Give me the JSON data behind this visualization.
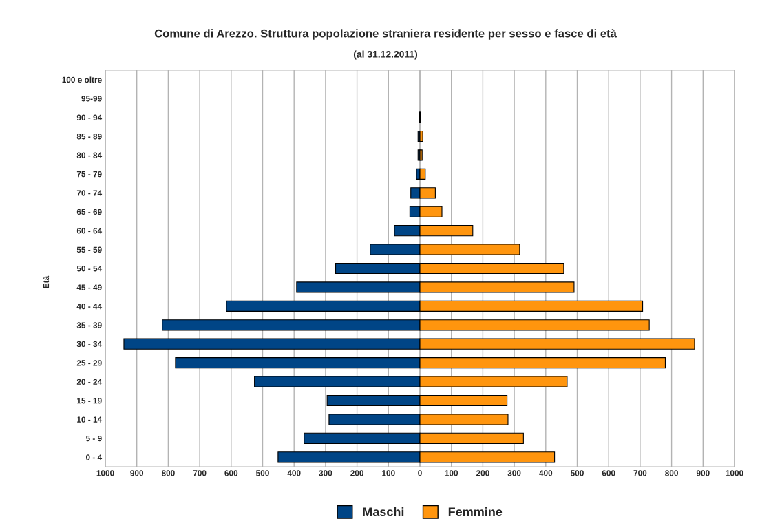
{
  "chart_data": {
    "type": "bar",
    "orientation": "horizontal",
    "stacked": true,
    "title": "Comune di Arezzo. Struttura popolazione straniera residente per sesso e fasce di età",
    "subtitle": "(al 31.12.2011)",
    "ylabel": "Età",
    "categories": [
      "100 e oltre",
      "95-99",
      "90 - 94",
      "85 - 89",
      "80 - 84",
      "75 - 79",
      "70 - 74",
      "65 - 69",
      "60 - 64",
      "55 - 59",
      "50 - 54",
      "45 - 49",
      "40 - 44",
      "35 - 39",
      "30 - 34",
      "25 - 29",
      "20 - 24",
      "15 - 19",
      "10 - 14",
      "5 - 9",
      "0 - 4"
    ],
    "series": [
      {
        "name": "Maschi",
        "color": "#004586",
        "values": [
          0,
          0,
          -1,
          -6,
          -6,
          -11,
          -29,
          -32,
          -81,
          -158,
          -268,
          -392,
          -615,
          -819,
          -941,
          -777,
          -526,
          -295,
          -289,
          -368,
          -451
        ]
      },
      {
        "name": "Femmine",
        "color": "#ff950e",
        "values": [
          0,
          0,
          1,
          9,
          7,
          17,
          49,
          70,
          168,
          317,
          457,
          490,
          708,
          729,
          873,
          780,
          468,
          277,
          280,
          329,
          428
        ]
      }
    ],
    "xlim": [
      -1000,
      1000
    ],
    "xticks": [
      {
        "value": -1000,
        "label": "1000"
      },
      {
        "value": -900,
        "label": "900"
      },
      {
        "value": -800,
        "label": "800"
      },
      {
        "value": -700,
        "label": "700"
      },
      {
        "value": -600,
        "label": "600"
      },
      {
        "value": -500,
        "label": "500"
      },
      {
        "value": -400,
        "label": "400"
      },
      {
        "value": -300,
        "label": "300"
      },
      {
        "value": -200,
        "label": "200"
      },
      {
        "value": -100,
        "label": "100"
      },
      0,
      100,
      200,
      300,
      400,
      500,
      600,
      700,
      800,
      900,
      1000
    ],
    "grid": "x",
    "legend": "bottom"
  }
}
